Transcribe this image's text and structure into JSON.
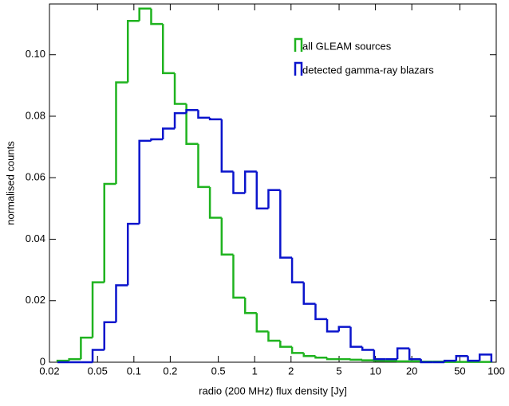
{
  "chart_data": {
    "type": "histogram",
    "xlabel": "radio (200 MHz) flux density [Jy]",
    "ylabel": "normalised counts",
    "xscale": "log",
    "grid": false,
    "legend": "upper right",
    "xlim": [
      0.02,
      100
    ],
    "ylim": [
      0,
      0.1165
    ],
    "xticks": [
      0.02,
      0.05,
      0.1,
      0.2,
      0.5,
      1,
      2,
      5,
      10,
      20,
      50,
      100
    ],
    "yticks": [
      0,
      0.02,
      0.04,
      0.06,
      {
        "value": 0.08,
        "label": "0.08"
      },
      {
        "value": 0.1,
        "label": "0.10"
      }
    ],
    "bins": [
      0.0233,
      0.0291,
      0.0364,
      0.0455,
      0.0569,
      0.0712,
      0.0891,
      0.111,
      0.139,
      0.174,
      0.218,
      0.272,
      0.341,
      0.426,
      0.533,
      0.666,
      0.833,
      1.04,
      1.3,
      1.63,
      2.04,
      2.55,
      3.19,
      3.98,
      4.98,
      6.23,
      7.79,
      9.74,
      12.2,
      15.2,
      19.1,
      23.8,
      29.8,
      37.3,
      46.6,
      58.3,
      72.9,
      91.1
    ],
    "series": [
      {
        "name": "all GLEAM sources",
        "color": "#1fb31f",
        "values": [
          0.0005,
          0.001,
          0.008,
          0.026,
          0.058,
          0.091,
          0.111,
          0.115,
          0.11,
          0.094,
          0.084,
          0.071,
          0.057,
          0.047,
          0.035,
          0.021,
          0.016,
          0.01,
          0.007,
          0.005,
          0.003,
          0.002,
          0.0015,
          0.001,
          0.001,
          0.0008,
          0.0006,
          0.0005,
          0.0004,
          0.0003,
          0.0003,
          0.0002,
          0.0002,
          0.0001,
          0.0001,
          0.0001,
          0.0001
        ]
      },
      {
        "name": "detected gamma-ray blazars",
        "color": "#0a14cc",
        "values": [
          0,
          0,
          0,
          0.004,
          0.013,
          0.025,
          0.045,
          0.072,
          0.0725,
          0.076,
          0.081,
          0.082,
          0.0795,
          0.079,
          0.062,
          0.055,
          0.062,
          0.05,
          0.056,
          0.034,
          0.026,
          0.019,
          0.014,
          0.01,
          0.0115,
          0.005,
          0.004,
          0.001,
          0.001,
          0.0045,
          0.001,
          0,
          0,
          0.0005,
          0.002,
          0.0005,
          0.0025
        ]
      }
    ]
  }
}
